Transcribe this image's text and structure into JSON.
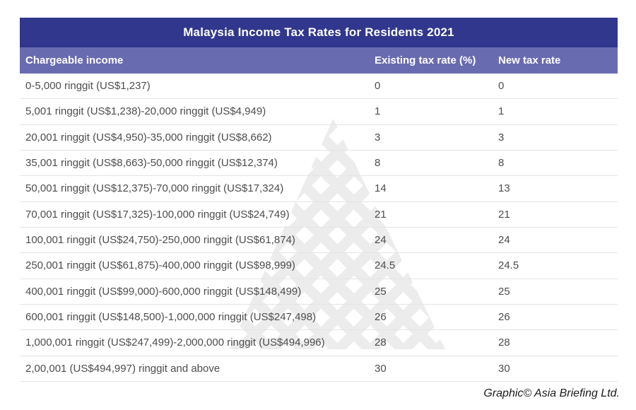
{
  "chart_data": {
    "type": "table",
    "title": "Malaysia Income Tax Rates for Residents 2021",
    "columns": [
      "Chargeable income",
      "Existing tax rate (%)",
      "New tax rate"
    ],
    "rows": [
      [
        "0-5,000 ringgit (US$1,237)",
        "0",
        "0"
      ],
      [
        "5,001 ringgit (US$1,238)-20,000 ringgit (US$4,949)",
        "1",
        "1"
      ],
      [
        "20,001 ringgit (US$4,950)-35,000 ringgit (US$8,662)",
        "3",
        "3"
      ],
      [
        "35,001 ringgit (US$8,663)-50,000 ringgit (US$12,374)",
        "8",
        "8"
      ],
      [
        "50,001 ringgit (US$12,375)-70,000 ringgit (US$17,324)",
        "14",
        "13"
      ],
      [
        "70,001 ringgit (US$17,325)-100,000 ringgit (US$24,749)",
        "21",
        "21"
      ],
      [
        "100,001 ringgit (US$24,750)-250,000 ringgit (US$61,874)",
        "24",
        "24"
      ],
      [
        "250,001 ringgit (US$61,875)-400,000 ringgit (US$98,999)",
        "24.5",
        "24.5"
      ],
      [
        "400,001 ringgit (US$99,000)-600,000 ringgit (US$148,499)",
        "25",
        "25"
      ],
      [
        "600,001 ringgit (US$148,500)-1,000,000 ringgit (US$247,498)",
        "26",
        "26"
      ],
      [
        "1,000,001 ringgit (US$247,499)-2,000,000 ringgit (US$494,996)",
        "28",
        "28"
      ],
      [
        "2,00,001 (US$494,997) ringgit and above",
        "30",
        "30"
      ]
    ]
  },
  "footer": {
    "credit": "Graphic© Asia Briefing Ltd."
  },
  "watermark": {
    "icon": "asia-briefing-logo-watermark"
  },
  "colors": {
    "title_bg": "#31378d",
    "header_bg": "#696bb0",
    "header_text": "#ffffff",
    "row_text": "#4d4d4d",
    "separator": "#e4e4e4",
    "watermark": "#ececec",
    "credit": "#1b1b1b"
  }
}
